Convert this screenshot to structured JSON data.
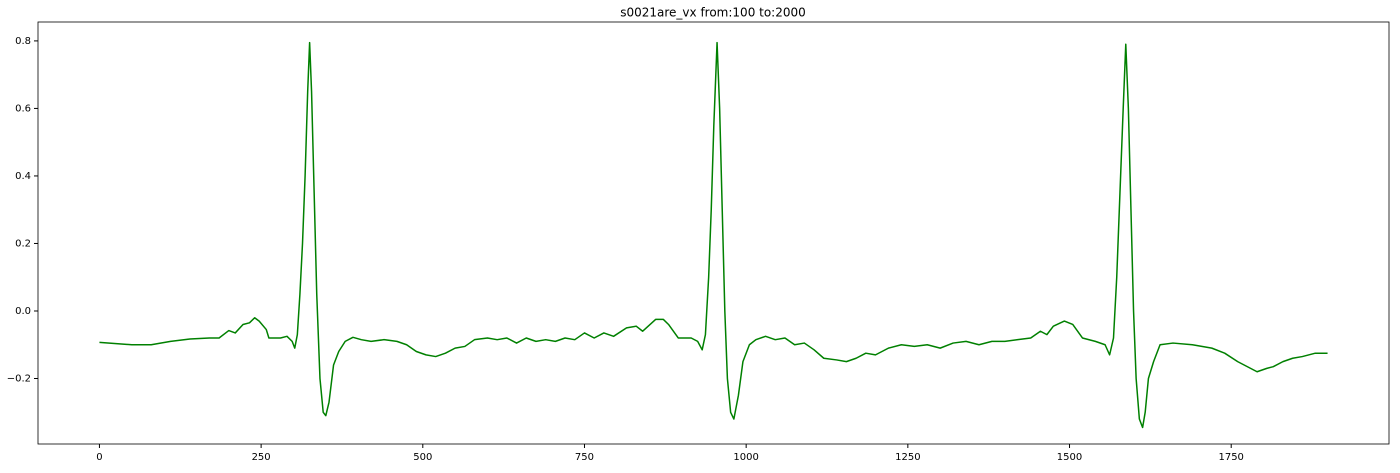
{
  "chart_data": {
    "type": "line",
    "title": "s0021are_vx from:100 to:2000",
    "x": [
      0,
      50,
      80,
      110,
      140,
      170,
      185,
      200,
      210,
      222,
      232,
      240,
      247,
      258,
      262,
      280,
      290,
      298,
      302,
      306,
      310,
      314,
      318,
      322,
      325,
      328,
      332,
      336,
      341,
      346,
      350,
      355,
      362,
      370,
      380,
      392,
      405,
      420,
      440,
      460,
      475,
      490,
      505,
      520,
      535,
      550,
      565,
      580,
      600,
      615,
      630,
      645,
      660,
      675,
      690,
      705,
      720,
      735,
      750,
      765,
      780,
      795,
      815,
      830,
      840,
      860,
      872,
      880,
      895,
      915,
      925,
      932,
      937,
      942,
      946,
      950,
      955,
      959,
      963,
      967,
      971,
      976,
      981,
      988,
      995,
      1005,
      1015,
      1030,
      1045,
      1060,
      1075,
      1090,
      1105,
      1120,
      1140,
      1155,
      1170,
      1185,
      1200,
      1220,
      1240,
      1260,
      1280,
      1300,
      1320,
      1340,
      1360,
      1380,
      1400,
      1420,
      1440,
      1455,
      1465,
      1475,
      1492,
      1505,
      1520,
      1540,
      1555,
      1562,
      1568,
      1573,
      1578,
      1583,
      1587,
      1591,
      1595,
      1599,
      1603,
      1608,
      1613,
      1617,
      1622,
      1630,
      1640,
      1660,
      1690,
      1720,
      1740,
      1760,
      1780,
      1790,
      1805,
      1815,
      1830,
      1845,
      1860,
      1880,
      1899
    ],
    "series": [
      {
        "color": "#008000",
        "values": [
          -0.093,
          -0.1,
          -0.1,
          -0.09,
          -0.083,
          -0.08,
          -0.08,
          -0.058,
          -0.065,
          -0.04,
          -0.035,
          -0.02,
          -0.03,
          -0.055,
          -0.08,
          -0.08,
          -0.075,
          -0.09,
          -0.11,
          -0.07,
          0.05,
          0.2,
          0.4,
          0.65,
          0.795,
          0.65,
          0.35,
          0.05,
          -0.2,
          -0.3,
          -0.31,
          -0.27,
          -0.16,
          -0.12,
          -0.09,
          -0.078,
          -0.085,
          -0.09,
          -0.085,
          -0.09,
          -0.1,
          -0.12,
          -0.13,
          -0.135,
          -0.125,
          -0.11,
          -0.105,
          -0.085,
          -0.08,
          -0.085,
          -0.08,
          -0.095,
          -0.08,
          -0.09,
          -0.085,
          -0.09,
          -0.08,
          -0.085,
          -0.065,
          -0.08,
          -0.065,
          -0.075,
          -0.05,
          -0.045,
          -0.06,
          -0.025,
          -0.025,
          -0.04,
          -0.08,
          -0.08,
          -0.09,
          -0.115,
          -0.07,
          0.1,
          0.3,
          0.55,
          0.795,
          0.6,
          0.3,
          0,
          -0.2,
          -0.3,
          -0.32,
          -0.25,
          -0.15,
          -0.1,
          -0.085,
          -0.075,
          -0.085,
          -0.08,
          -0.1,
          -0.095,
          -0.115,
          -0.14,
          -0.145,
          -0.15,
          -0.14,
          -0.125,
          -0.13,
          -0.11,
          -0.1,
          -0.105,
          -0.1,
          -0.11,
          -0.095,
          -0.09,
          -0.1,
          -0.09,
          -0.09,
          -0.085,
          -0.08,
          -0.06,
          -0.07,
          -0.045,
          -0.03,
          -0.04,
          -0.08,
          -0.09,
          -0.1,
          -0.13,
          -0.08,
          0.1,
          0.35,
          0.6,
          0.79,
          0.6,
          0.3,
          0,
          -0.2,
          -0.32,
          -0.345,
          -0.3,
          -0.2,
          -0.15,
          -0.1,
          -0.095,
          -0.1,
          -0.11,
          -0.125,
          -0.15,
          -0.17,
          -0.18,
          -0.17,
          -0.165,
          -0.15,
          -0.14,
          -0.135,
          -0.125,
          -0.125
        ]
      }
    ],
    "xlim": [
      -95,
      1994
    ],
    "ylim": [
      -0.394,
      0.856
    ],
    "xticks": [
      0,
      250,
      500,
      750,
      1000,
      1250,
      1500,
      1750
    ],
    "yticks": [
      {
        "value": -0.2,
        "label": "−0.2"
      },
      {
        "value": 0,
        "label": "0.0"
      },
      0.2,
      0.4,
      0.6,
      0.8
    ]
  }
}
